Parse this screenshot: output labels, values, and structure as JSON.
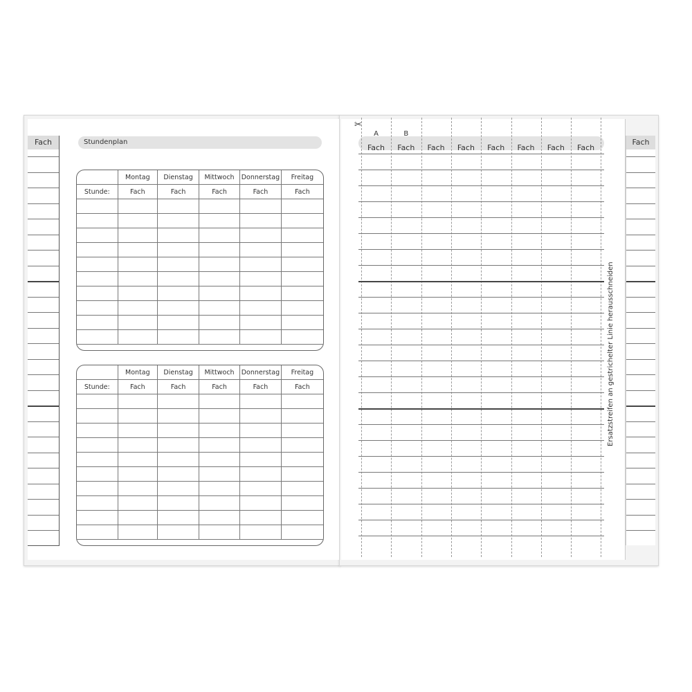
{
  "left_page": {
    "strip_header": "Fach",
    "title": "Stundenplan",
    "tables": [
      {
        "days": [
          "Montag",
          "Dienstag",
          "Mittwoch",
          "Donnerstag",
          "Freitag"
        ],
        "row_label": "Stunde:",
        "cell_label": "Fach"
      },
      {
        "days": [
          "Montag",
          "Dienstag",
          "Mittwoch",
          "Donnerstag",
          "Freitag"
        ],
        "row_label": "Stunde:",
        "cell_label": "Fach"
      }
    ]
  },
  "right_page": {
    "scissors_icon": "scissors-icon",
    "column_letters": [
      "A",
      "B"
    ],
    "column_headers": [
      "Fach",
      "Fach",
      "Fach",
      "Fach",
      "Fach",
      "Fach",
      "Fach",
      "Fach"
    ],
    "vertical_note": "Ersatzstreifen an gestrichelter Linie herausschneiden",
    "strip_header": "Fach"
  }
}
